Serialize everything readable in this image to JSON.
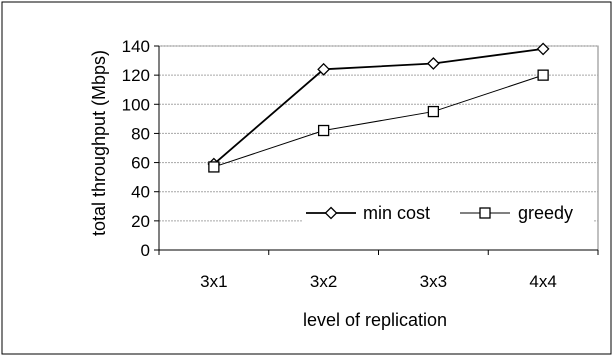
{
  "chart_data": {
    "type": "line",
    "title": "",
    "xlabel": "level of replication",
    "ylabel": "total throughput (Mbps)",
    "categories": [
      "3x1",
      "3x2",
      "3x3",
      "4x4"
    ],
    "ylim": [
      0,
      140
    ],
    "yticks": [
      0,
      20,
      40,
      60,
      80,
      100,
      120,
      140
    ],
    "grid": true,
    "legend_position": "right",
    "series": [
      {
        "name": "min cost",
        "marker": "diamond",
        "values": [
          59,
          124,
          128,
          138
        ]
      },
      {
        "name": "greedy",
        "marker": "square",
        "values": [
          57,
          82,
          95,
          120
        ]
      }
    ]
  }
}
